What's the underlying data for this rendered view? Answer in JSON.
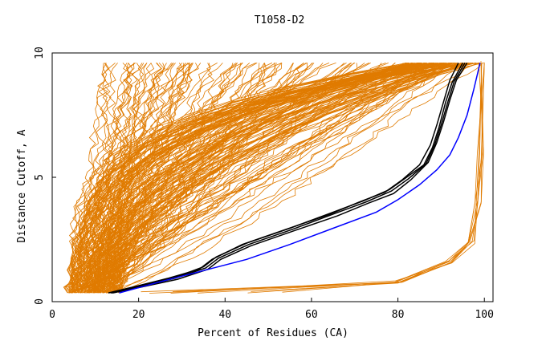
{
  "chart_data": {
    "type": "line",
    "title": "T1058-D2",
    "xlabel": "Percent of Residues (CA)",
    "ylabel": "Distance Cutoff, A",
    "xlim": [
      0,
      102
    ],
    "ylim": [
      0,
      10
    ],
    "xticks": [
      0,
      20,
      40,
      60,
      80,
      100
    ],
    "yticks": [
      0,
      5,
      10
    ],
    "grid": false,
    "legend": "none",
    "colors": {
      "models": "#e07b00",
      "highlight_black": "#000000",
      "highlight_blue": "#0000ff"
    },
    "highlight_series": [
      {
        "color": "#000000",
        "x": [
          13.5,
          20,
          28,
          35,
          38,
          45,
          55,
          65,
          72,
          78,
          82,
          86,
          88,
          89.5,
          91,
          92.5,
          95
        ],
        "y": [
          0.35,
          0.6,
          0.95,
          1.4,
          1.8,
          2.35,
          2.95,
          3.6,
          4.05,
          4.5,
          5.0,
          5.5,
          6.2,
          7.0,
          8.0,
          8.8,
          9.6
        ]
      },
      {
        "color": "#000000",
        "x": [
          13,
          19,
          27,
          34,
          37,
          44,
          54,
          64,
          71,
          77,
          81,
          85,
          87.5,
          89,
          90.5,
          92,
          94
        ],
        "y": [
          0.35,
          0.6,
          0.95,
          1.3,
          1.7,
          2.3,
          2.9,
          3.5,
          4.0,
          4.4,
          4.9,
          5.5,
          6.3,
          7.1,
          8.0,
          8.9,
          9.6
        ]
      },
      {
        "color": "#000000",
        "x": [
          14,
          21,
          29,
          36,
          39,
          46,
          56,
          66,
          73,
          79,
          83,
          87,
          89,
          90.5,
          92,
          93.5,
          96
        ],
        "y": [
          0.35,
          0.6,
          0.9,
          1.3,
          1.7,
          2.25,
          2.85,
          3.45,
          3.95,
          4.35,
          4.9,
          5.6,
          6.4,
          7.2,
          8.1,
          8.9,
          9.6
        ]
      },
      {
        "color": "#000000",
        "x": [
          13.8,
          20.5,
          28.5,
          35.5,
          38.5,
          45.5,
          55.5,
          65.5,
          72.5,
          78.5,
          82.5,
          86.5,
          88.5,
          90,
          91.5,
          93,
          95.5
        ],
        "y": [
          0.35,
          0.6,
          0.95,
          1.35,
          1.75,
          2.3,
          2.9,
          3.55,
          4.0,
          4.45,
          4.95,
          5.55,
          6.3,
          7.1,
          8.0,
          8.85,
          9.6
        ]
      },
      {
        "color": "#0000ff",
        "x": [
          15.5,
          25,
          35,
          45,
          55,
          65,
          75,
          80,
          85,
          89,
          92,
          94,
          96,
          97.5,
          99
        ],
        "y": [
          0.35,
          0.8,
          1.25,
          1.7,
          2.3,
          2.95,
          3.6,
          4.1,
          4.7,
          5.3,
          5.9,
          6.6,
          7.5,
          8.5,
          9.6
        ]
      }
    ]
  }
}
